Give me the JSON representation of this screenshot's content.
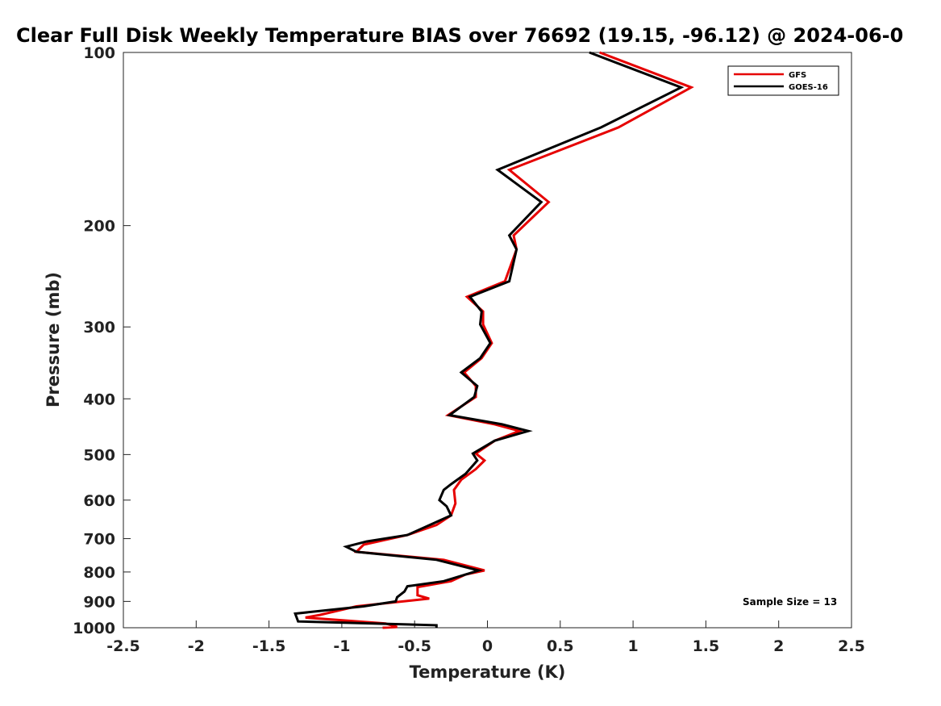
{
  "chart_data": {
    "type": "line",
    "title": "Clear Full Disk Weekly Temperature BIAS over 76692 (19.15, -96.12) @ 2024-06-0",
    "xlabel": "Temperature (K)",
    "ylabel": "Pressure (mb)",
    "xlim": [
      -2.5,
      2.5
    ],
    "ylim": [
      100,
      1000
    ],
    "y_scale": "log",
    "y_reversed": true,
    "x_ticks": [
      "-2.5",
      "-2",
      "-1.5",
      "-1",
      "-0.5",
      "0",
      "0.5",
      "1",
      "1.5",
      "2",
      "2.5"
    ],
    "y_ticks": [
      "100",
      "200",
      "300",
      "400",
      "500",
      "600",
      "700",
      "800",
      "900",
      "1000"
    ],
    "legend_position": "top-right",
    "annotation": "Sample Size = 13",
    "series": [
      {
        "name": "GFS",
        "color": "#e60000",
        "points": [
          [
            0.77,
            100
          ],
          [
            1.4,
            115
          ],
          [
            0.9,
            135
          ],
          [
            0.15,
            160
          ],
          [
            0.42,
            182
          ],
          [
            0.18,
            208
          ],
          [
            0.2,
            220
          ],
          [
            0.12,
            250
          ],
          [
            -0.14,
            266
          ],
          [
            -0.03,
            282
          ],
          [
            -0.03,
            297
          ],
          [
            0.03,
            320
          ],
          [
            -0.04,
            340
          ],
          [
            -0.16,
            360
          ],
          [
            -0.08,
            380
          ],
          [
            -0.08,
            397
          ],
          [
            -0.27,
            427
          ],
          [
            0.05,
            443
          ],
          [
            0.22,
            455
          ],
          [
            0.05,
            473
          ],
          [
            -0.08,
            498
          ],
          [
            -0.02,
            512
          ],
          [
            -0.08,
            530
          ],
          [
            -0.18,
            553
          ],
          [
            -0.23,
            576
          ],
          [
            -0.22,
            608
          ],
          [
            -0.25,
            638
          ],
          [
            -0.35,
            663
          ],
          [
            -0.55,
            690
          ],
          [
            -0.85,
            717
          ],
          [
            -0.9,
            738
          ],
          [
            -0.3,
            762
          ],
          [
            -0.02,
            795
          ],
          [
            -0.15,
            808
          ],
          [
            -0.25,
            830
          ],
          [
            -0.48,
            850
          ],
          [
            -0.48,
            878
          ],
          [
            -0.4,
            890
          ],
          [
            -0.9,
            918
          ],
          [
            -1.15,
            950
          ],
          [
            -1.25,
            960
          ],
          [
            -0.7,
            983
          ],
          [
            -0.62,
            997
          ],
          [
            -0.72,
            1000
          ]
        ]
      },
      {
        "name": "GOES-16",
        "color": "#000000",
        "points": [
          [
            0.7,
            100
          ],
          [
            1.33,
            115
          ],
          [
            0.78,
            135
          ],
          [
            0.07,
            160
          ],
          [
            0.37,
            182
          ],
          [
            0.15,
            208
          ],
          [
            0.2,
            220
          ],
          [
            0.15,
            250
          ],
          [
            -0.12,
            266
          ],
          [
            -0.04,
            282
          ],
          [
            -0.05,
            297
          ],
          [
            0.02,
            320
          ],
          [
            -0.05,
            340
          ],
          [
            -0.18,
            360
          ],
          [
            -0.07,
            380
          ],
          [
            -0.09,
            397
          ],
          [
            -0.26,
            427
          ],
          [
            0.1,
            443
          ],
          [
            0.28,
            455
          ],
          [
            0.05,
            473
          ],
          [
            -0.1,
            498
          ],
          [
            -0.07,
            512
          ],
          [
            -0.15,
            540
          ],
          [
            -0.25,
            563
          ],
          [
            -0.3,
            576
          ],
          [
            -0.33,
            600
          ],
          [
            -0.28,
            615
          ],
          [
            -0.25,
            638
          ],
          [
            -0.55,
            690
          ],
          [
            -0.83,
            708
          ],
          [
            -0.97,
            723
          ],
          [
            -0.9,
            738
          ],
          [
            -0.35,
            762
          ],
          [
            -0.06,
            795
          ],
          [
            -0.3,
            830
          ],
          [
            -0.55,
            847
          ],
          [
            -0.57,
            865
          ],
          [
            -0.62,
            885
          ],
          [
            -0.63,
            900
          ],
          [
            -0.85,
            918
          ],
          [
            -1.32,
            945
          ],
          [
            -1.3,
            975
          ],
          [
            -0.35,
            990
          ],
          [
            -0.35,
            1000
          ]
        ]
      }
    ]
  }
}
